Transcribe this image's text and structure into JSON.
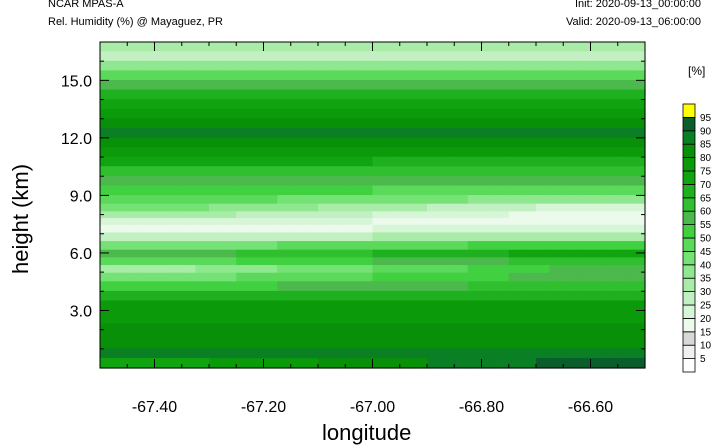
{
  "header": {
    "model": "NCAR MPAS-A",
    "subtitle": "Rel. Humidity (%) @ Mayaguez, PR",
    "init": "Init: 2020-09-13_00:00:00",
    "valid": "Valid: 2020-09-13_06:00:00"
  },
  "chart_data": {
    "type": "heatmap",
    "title": "Rel. Humidity (%) @ Mayaguez, PR",
    "xlabel": "longitude",
    "ylabel": "height (km)",
    "xlim": [
      -67.5,
      -66.5
    ],
    "ylim": [
      0,
      17
    ],
    "x_ticks": [
      -67.4,
      -67.2,
      -67.0,
      -66.8,
      -66.6
    ],
    "x_tick_labels": [
      "-67.40",
      "-67.20",
      "-67.00",
      "-66.80",
      "-66.60"
    ],
    "y_ticks": [
      3,
      6,
      9,
      12,
      15
    ],
    "y_tick_labels": [
      "3.0",
      "6.0",
      "9.0",
      "12.0",
      "15.0"
    ],
    "colorbar": {
      "unit_label": "[%]",
      "levels": [
        5,
        10,
        15,
        20,
        25,
        30,
        35,
        40,
        45,
        50,
        55,
        60,
        65,
        70,
        75,
        80,
        85,
        90,
        95
      ],
      "level_labels": [
        "5",
        "10",
        "15",
        "20",
        "25",
        "30",
        "35",
        "40",
        "45",
        "50",
        "55",
        "60",
        "65",
        "70",
        "75",
        "80",
        "85",
        "90",
        "95"
      ],
      "colors": [
        "#ffffff",
        "#f0f0f0",
        "#d8d8d8",
        "#ebfaeb",
        "#d7f5d7",
        "#c3f0c3",
        "#a8eca8",
        "#8fe88f",
        "#74e274",
        "#5ad95a",
        "#40d040",
        "#4cb94c",
        "#2fbf2f",
        "#1eb01e",
        "#10a510",
        "#0a9a0a",
        "#089008",
        "#0a7f24",
        "#0b5e2c",
        "#ffff00"
      ]
    },
    "profile": {
      "heights_km": [
        0.3,
        0.8,
        1.3,
        2.0,
        2.7,
        3.3,
        3.8,
        4.3,
        4.8,
        5.2,
        5.6,
        6.0,
        6.4,
        6.9,
        7.3,
        7.7,
        8.0,
        8.4,
        8.8,
        9.3,
        9.8,
        10.3,
        10.8,
        11.3,
        11.8,
        12.3,
        12.8,
        13.3,
        13.8,
        14.3,
        14.8,
        15.3,
        15.8,
        16.3,
        16.8
      ],
      "west_rh": [
        70,
        90,
        85,
        80,
        80,
        75,
        65,
        50,
        40,
        30,
        45,
        55,
        40,
        25,
        15,
        25,
        35,
        45,
        50,
        55,
        60,
        65,
        75,
        80,
        85,
        85,
        80,
        75,
        70,
        65,
        55,
        45,
        35,
        25,
        30
      ],
      "east_rh": [
        95,
        85,
        80,
        80,
        75,
        75,
        70,
        65,
        60,
        60,
        65,
        75,
        55,
        35,
        25,
        15,
        15,
        20,
        35,
        45,
        55,
        60,
        65,
        75,
        80,
        85,
        85,
        80,
        75,
        65,
        55,
        45,
        35,
        25,
        30
      ]
    }
  }
}
